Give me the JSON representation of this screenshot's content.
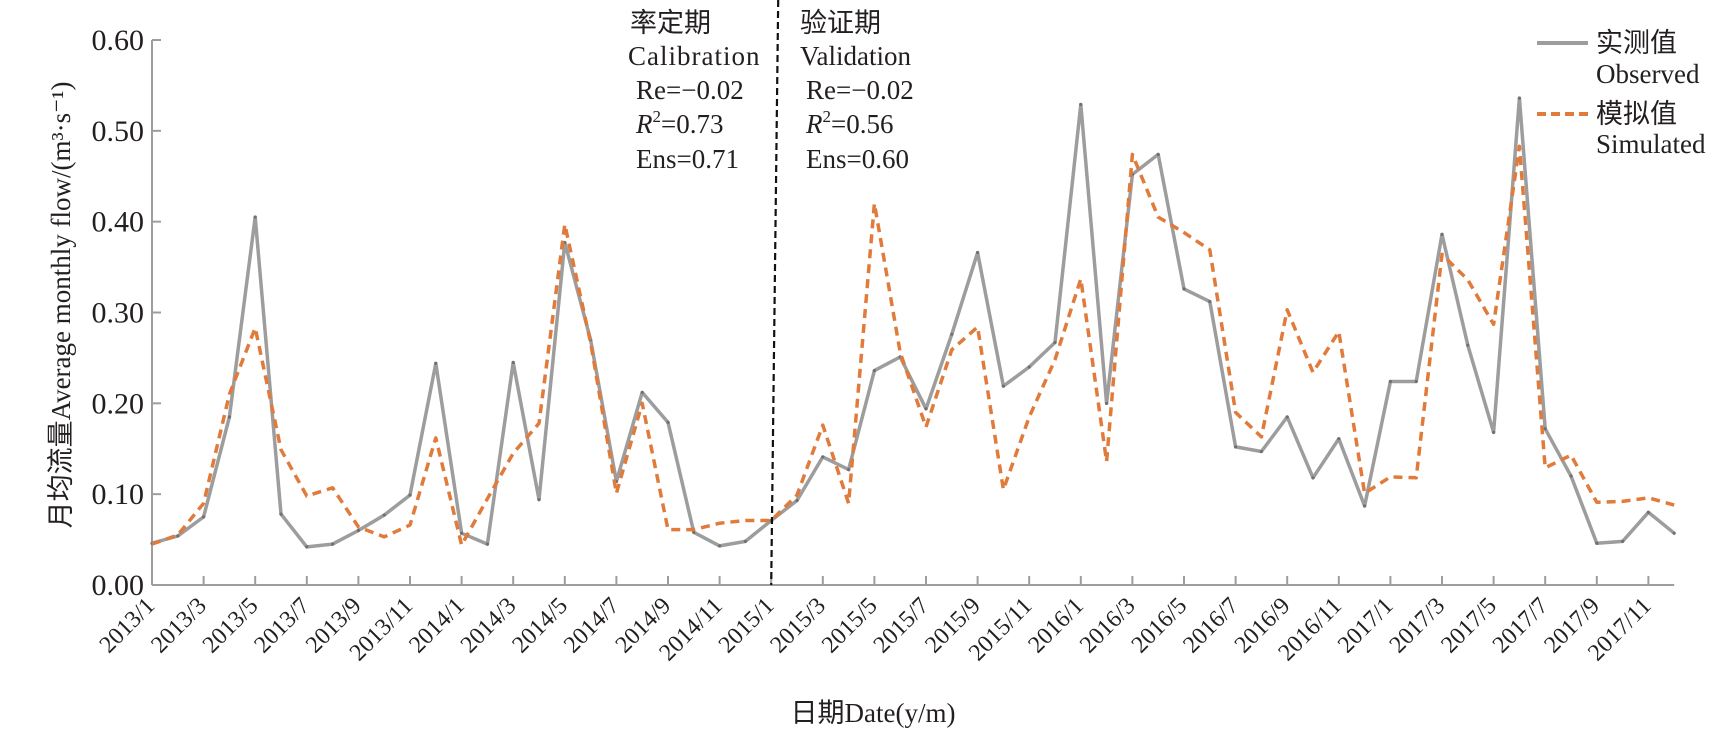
{
  "chart_data": {
    "type": "line",
    "title": "",
    "xlabel": "日期Date(y/m)",
    "ylabel": "月均流量Average monthly flow/(m³·s⁻¹)",
    "ylim": [
      0,
      0.6
    ],
    "yticks": [
      "0.00",
      "0.10",
      "0.20",
      "0.30",
      "0.40",
      "0.50",
      "0.60"
    ],
    "ytick_values": [
      0,
      0.1,
      0.2,
      0.3,
      0.4,
      0.5,
      0.6
    ],
    "grid": false,
    "legend_position": "top-right",
    "x": [
      "2013/1",
      "2013/2",
      "2013/3",
      "2013/4",
      "2013/5",
      "2013/6",
      "2013/7",
      "2013/8",
      "2013/9",
      "2013/10",
      "2013/11",
      "2013/12",
      "2014/1",
      "2014/2",
      "2014/3",
      "2014/4",
      "2014/5",
      "2014/6",
      "2014/7",
      "2014/8",
      "2014/9",
      "2014/10",
      "2014/11",
      "2014/12",
      "2015/1",
      "2015/2",
      "2015/3",
      "2015/4",
      "2015/5",
      "2015/6",
      "2015/7",
      "2015/8",
      "2015/9",
      "2015/10",
      "2015/11",
      "2015/12",
      "2016/1",
      "2016/2",
      "2016/3",
      "2016/4",
      "2016/5",
      "2016/6",
      "2016/7",
      "2016/8",
      "2016/9",
      "2016/10",
      "2016/11",
      "2016/12",
      "2017/1",
      "2017/2",
      "2017/3",
      "2017/4",
      "2017/5",
      "2017/6",
      "2017/7",
      "2017/8",
      "2017/9",
      "2017/10",
      "2017/11",
      "2017/12"
    ],
    "xtick_labels": [
      "2013/1",
      "2013/3",
      "2013/5",
      "2013/7",
      "2013/9",
      "2013/11",
      "2014/1",
      "2014/3",
      "2014/5",
      "2014/7",
      "2014/9",
      "2014/11",
      "2015/1",
      "2015/3",
      "2015/5",
      "2015/7",
      "2015/9",
      "2015/11",
      "2016/1",
      "2016/3",
      "2016/5",
      "2016/7",
      "2016/9",
      "2016/11",
      "2017/1",
      "2017/3",
      "2017/5",
      "2017/7",
      "2017/9",
      "2017/11"
    ],
    "series": [
      {
        "name": "实测值 Observed",
        "name_cn": "实测值",
        "name_en": "Observed",
        "color": "#9d9d9d",
        "style": "solid",
        "values": [
          0.046,
          0.054,
          0.075,
          0.185,
          0.405,
          0.078,
          0.042,
          0.045,
          0.06,
          0.077,
          0.099,
          0.244,
          0.057,
          0.045,
          0.245,
          0.094,
          0.377,
          0.27,
          0.114,
          0.212,
          0.179,
          0.058,
          0.043,
          0.048,
          0.071,
          0.093,
          0.141,
          0.127,
          0.236,
          0.251,
          0.194,
          0.276,
          0.366,
          0.219,
          0.24,
          0.267,
          0.529,
          0.2,
          0.452,
          0.474,
          0.326,
          0.312,
          0.152,
          0.147,
          0.185,
          0.118,
          0.161,
          0.087,
          0.224,
          0.224,
          0.386,
          0.264,
          0.168,
          0.536,
          0.172,
          0.12,
          0.046,
          0.048,
          0.08,
          0.057
        ]
      },
      {
        "name": "模拟值 Simulated",
        "name_cn": "模拟值",
        "name_en": "Simulated",
        "color": "#e07b3c",
        "style": "dashed",
        "values": [
          0.045,
          0.055,
          0.09,
          0.21,
          0.283,
          0.149,
          0.098,
          0.107,
          0.064,
          0.053,
          0.066,
          0.162,
          0.044,
          0.095,
          0.145,
          0.178,
          0.397,
          0.267,
          0.101,
          0.2,
          0.061,
          0.061,
          0.068,
          0.071,
          0.071,
          0.099,
          0.176,
          0.09,
          0.42,
          0.256,
          0.174,
          0.259,
          0.284,
          0.105,
          0.185,
          0.248,
          0.337,
          0.136,
          0.474,
          0.405,
          0.388,
          0.369,
          0.19,
          0.163,
          0.303,
          0.234,
          0.279,
          0.101,
          0.119,
          0.118,
          0.364,
          0.336,
          0.287,
          0.483,
          0.129,
          0.143,
          0.091,
          0.092,
          0.096,
          0.088
        ]
      }
    ],
    "divider": {
      "at": "2015/1",
      "color": "#111111",
      "style": "dashed"
    },
    "annotations": {
      "calibration": {
        "title_cn": "率定期",
        "title_en": "Calibration",
        "re": "Re=−0.02",
        "r2_label": "R",
        "r2_sup": "2",
        "r2_value": "=0.73",
        "ens": "Ens=0.71"
      },
      "validation": {
        "title_cn": "验证期",
        "title_en": "Validation",
        "re": "Re=−0.02",
        "r2_label": "R",
        "r2_sup": "2",
        "r2_value": "=0.56",
        "ens": "Ens=0.60"
      }
    },
    "axis_color": "#9d9d9d"
  }
}
